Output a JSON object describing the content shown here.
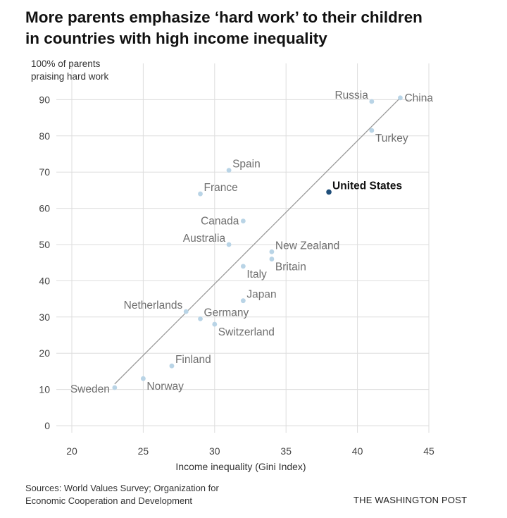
{
  "header": {
    "title_line1": "More parents emphasize ‘hard work’ to their children",
    "title_line2": "in countries with high income inequality"
  },
  "footer": {
    "sources_line1": "Sources: World Values Survey; Organization for",
    "sources_line2": "Economic Cooperation and Development",
    "credit": "THE WASHINGTON POST"
  },
  "chart_data": {
    "type": "scatter",
    "title": "More parents emphasize ‘hard work’ to their children in countries with high income inequality",
    "xlabel": "Income inequality (Gini Index)",
    "ylabel_line1": "100% of parents",
    "ylabel_line2": "praising hard work",
    "xlim": [
      20,
      45
    ],
    "ylim": [
      0,
      100
    ],
    "xticks": [
      20,
      25,
      30,
      35,
      40,
      45
    ],
    "yticks": [
      0,
      10,
      20,
      30,
      40,
      50,
      60,
      70,
      80,
      90
    ],
    "grid": true,
    "colors": {
      "point": "#b9d4e6",
      "highlight": "#1f4e79",
      "trend": "#9a9a9a",
      "grid": "#dddddd"
    },
    "points": [
      {
        "name": "China",
        "x": 43,
        "y": 90.5,
        "label_pos": "right"
      },
      {
        "name": "Russia",
        "x": 41,
        "y": 89.5,
        "label_pos": "left-up"
      },
      {
        "name": "Turkey",
        "x": 41,
        "y": 81.5,
        "label_pos": "right-down"
      },
      {
        "name": "Spain",
        "x": 31,
        "y": 70.5,
        "label_pos": "right-up"
      },
      {
        "name": "France",
        "x": 29,
        "y": 64,
        "label_pos": "right-up"
      },
      {
        "name": "United States",
        "x": 38,
        "y": 64.5,
        "label_pos": "right-up",
        "highlight": true
      },
      {
        "name": "Canada",
        "x": 32,
        "y": 56.5,
        "label_pos": "left"
      },
      {
        "name": "Australia",
        "x": 31,
        "y": 50,
        "label_pos": "left-up"
      },
      {
        "name": "New Zealand",
        "x": 34,
        "y": 48,
        "label_pos": "right-up"
      },
      {
        "name": "Britain",
        "x": 34,
        "y": 46,
        "label_pos": "right-down"
      },
      {
        "name": "Italy",
        "x": 32,
        "y": 44,
        "label_pos": "right-down"
      },
      {
        "name": "Japan",
        "x": 32,
        "y": 34.5,
        "label_pos": "right-up"
      },
      {
        "name": "Netherlands",
        "x": 28,
        "y": 31.5,
        "label_pos": "left-up"
      },
      {
        "name": "Germany",
        "x": 29,
        "y": 29.5,
        "label_pos": "right-up"
      },
      {
        "name": "Switzerland",
        "x": 30,
        "y": 28,
        "label_pos": "right-down"
      },
      {
        "name": "Finland",
        "x": 27,
        "y": 16.5,
        "label_pos": "right-up"
      },
      {
        "name": "Norway",
        "x": 25,
        "y": 13,
        "label_pos": "right-down"
      },
      {
        "name": "Sweden",
        "x": 23,
        "y": 10.5,
        "label_pos": "left-down"
      }
    ],
    "trendline": {
      "x": [
        23,
        43
      ],
      "y": [
        11.5,
        90.5
      ]
    }
  }
}
